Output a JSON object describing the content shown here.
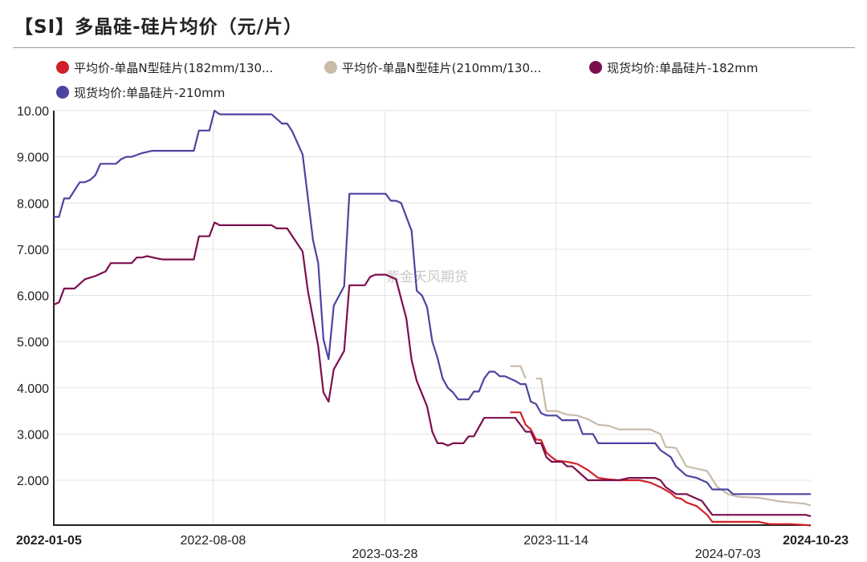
{
  "page": {
    "title": "【SI】多晶硅-硅片均价（元/片）",
    "watermark": "紫金天风期货"
  },
  "chart_data": {
    "type": "line",
    "title": "【SI】多晶硅-硅片均价（元/片）",
    "ylim": [
      1.0,
      10.0
    ],
    "y_ticks": [
      "10.00",
      "9.000",
      "8.000",
      "7.000",
      "6.000",
      "5.000",
      "4.000",
      "3.000",
      "2.000"
    ],
    "y_tick_values": [
      10,
      9,
      8,
      7,
      6,
      5,
      4,
      3,
      2
    ],
    "x_range": [
      "2022-01-05",
      "2024-10-23"
    ],
    "x_ticks": [
      {
        "label": "2022-01-05",
        "date": "2022-01-05",
        "row": 0,
        "bold": true
      },
      {
        "label": "2022-08-08",
        "date": "2022-08-08",
        "row": 0,
        "bold": false
      },
      {
        "label": "2023-03-28",
        "date": "2023-03-28",
        "row": 1,
        "bold": false
      },
      {
        "label": "2023-11-14",
        "date": "2023-11-14",
        "row": 0,
        "bold": false
      },
      {
        "label": "2024-07-03",
        "date": "2024-07-03",
        "row": 1,
        "bold": false
      },
      {
        "label": "2024-10-23",
        "date": "2024-10-23",
        "row": 0,
        "bold": true
      }
    ],
    "grid": true,
    "legend": "top",
    "series": [
      {
        "name": "平均价-单晶N型硅片(182mm/130...",
        "color": "#d0212a",
        "segments": [
          [
            [
              "2023-09-13",
              3.47
            ],
            [
              "2023-09-27",
              3.47
            ],
            [
              "2023-10-04",
              3.2
            ],
            [
              "2023-10-11",
              3.1
            ],
            [
              "2023-10-18",
              2.88
            ],
            [
              "2023-10-25",
              2.87
            ],
            [
              "2023-11-01",
              2.6
            ],
            [
              "2023-11-08",
              2.5
            ],
            [
              "2023-11-15",
              2.42
            ],
            [
              "2023-11-29",
              2.4
            ],
            [
              "2023-12-13",
              2.35
            ],
            [
              "2023-12-27",
              2.22
            ],
            [
              "2024-01-10",
              2.05
            ],
            [
              "2024-01-24",
              2.02
            ],
            [
              "2024-02-07",
              2.0
            ],
            [
              "2024-03-06",
              2.0
            ],
            [
              "2024-03-20",
              1.95
            ],
            [
              "2024-04-03",
              1.85
            ],
            [
              "2024-04-17",
              1.72
            ],
            [
              "2024-04-24",
              1.62
            ],
            [
              "2024-05-01",
              1.6
            ],
            [
              "2024-05-08",
              1.52
            ],
            [
              "2024-05-22",
              1.44
            ],
            [
              "2024-06-05",
              1.25
            ],
            [
              "2024-06-12",
              1.1
            ],
            [
              "2024-07-03",
              1.1
            ],
            [
              "2024-08-14",
              1.1
            ],
            [
              "2024-08-28",
              1.05
            ],
            [
              "2024-09-25",
              1.05
            ],
            [
              "2024-10-16",
              1.03
            ],
            [
              "2024-10-23",
              1.02
            ]
          ]
        ]
      },
      {
        "name": "平均价-单晶N型硅片(210mm/130...",
        "color": "#c8bba8",
        "segments": [
          [
            [
              "2023-09-13",
              4.47
            ],
            [
              "2023-09-27",
              4.47
            ],
            [
              "2023-10-04",
              4.2
            ]
          ],
          [
            [
              "2023-10-18",
              4.2
            ],
            [
              "2023-10-25",
              4.2
            ],
            [
              "2023-11-01",
              3.5
            ],
            [
              "2023-11-15",
              3.5
            ],
            [
              "2023-11-29",
              3.42
            ],
            [
              "2023-12-13",
              3.4
            ],
            [
              "2023-12-27",
              3.32
            ],
            [
              "2024-01-10",
              3.2
            ],
            [
              "2024-01-24",
              3.18
            ],
            [
              "2024-02-07",
              3.1
            ],
            [
              "2024-03-20",
              3.1
            ],
            [
              "2024-04-03",
              3.0
            ],
            [
              "2024-04-10",
              2.72
            ],
            [
              "2024-04-24",
              2.7
            ],
            [
              "2024-05-08",
              2.3
            ],
            [
              "2024-05-22",
              2.25
            ],
            [
              "2024-06-05",
              2.2
            ],
            [
              "2024-06-19",
              1.85
            ],
            [
              "2024-07-03",
              1.7
            ],
            [
              "2024-07-17",
              1.64
            ],
            [
              "2024-07-31",
              1.63
            ],
            [
              "2024-08-14",
              1.62
            ],
            [
              "2024-08-28",
              1.58
            ],
            [
              "2024-09-11",
              1.54
            ],
            [
              "2024-09-25",
              1.52
            ],
            [
              "2024-10-09",
              1.5
            ],
            [
              "2024-10-16",
              1.49
            ],
            [
              "2024-10-23",
              1.45
            ]
          ]
        ]
      },
      {
        "name": "现货均价:单晶硅片-182mm",
        "color": "#7d0e4e",
        "segments": [
          [
            [
              "2022-01-05",
              5.8
            ],
            [
              "2022-01-12",
              5.85
            ],
            [
              "2022-01-19",
              6.15
            ],
            [
              "2022-02-02",
              6.15
            ],
            [
              "2022-02-16",
              6.35
            ],
            [
              "2022-03-02",
              6.42
            ],
            [
              "2022-03-16",
              6.52
            ],
            [
              "2022-03-23",
              6.7
            ],
            [
              "2022-04-20",
              6.7
            ],
            [
              "2022-04-27",
              6.82
            ],
            [
              "2022-05-04",
              6.82
            ],
            [
              "2022-05-11",
              6.85
            ],
            [
              "2022-05-25",
              6.8
            ],
            [
              "2022-06-01",
              6.78
            ],
            [
              "2022-07-13",
              6.78
            ],
            [
              "2022-07-20",
              7.28
            ],
            [
              "2022-08-03",
              7.28
            ],
            [
              "2022-08-10",
              7.58
            ],
            [
              "2022-08-17",
              7.52
            ],
            [
              "2022-10-26",
              7.52
            ],
            [
              "2022-11-02",
              7.45
            ],
            [
              "2022-11-16",
              7.45
            ],
            [
              "2022-12-07",
              6.95
            ],
            [
              "2022-12-14",
              6.1
            ],
            [
              "2022-12-28",
              4.9
            ],
            [
              "2023-01-04",
              3.9
            ],
            [
              "2023-01-11",
              3.7
            ],
            [
              "2023-01-18",
              4.4
            ],
            [
              "2023-02-01",
              4.8
            ],
            [
              "2023-02-08",
              6.22
            ],
            [
              "2023-03-01",
              6.22
            ],
            [
              "2023-03-08",
              6.4
            ],
            [
              "2023-03-15",
              6.45
            ],
            [
              "2023-03-29",
              6.45
            ],
            [
              "2023-04-05",
              6.4
            ],
            [
              "2023-04-12",
              6.35
            ],
            [
              "2023-04-26",
              5.5
            ],
            [
              "2023-05-03",
              4.6
            ],
            [
              "2023-05-10",
              4.15
            ],
            [
              "2023-05-24",
              3.6
            ],
            [
              "2023-05-31",
              3.05
            ],
            [
              "2023-06-07",
              2.8
            ],
            [
              "2023-06-14",
              2.8
            ],
            [
              "2023-06-21",
              2.75
            ],
            [
              "2023-06-28",
              2.8
            ],
            [
              "2023-07-12",
              2.8
            ],
            [
              "2023-07-19",
              2.95
            ],
            [
              "2023-07-26",
              2.95
            ],
            [
              "2023-08-09",
              3.35
            ],
            [
              "2023-09-20",
              3.35
            ],
            [
              "2023-10-04",
              3.05
            ],
            [
              "2023-10-11",
              3.05
            ],
            [
              "2023-10-18",
              2.8
            ],
            [
              "2023-10-25",
              2.8
            ],
            [
              "2023-11-01",
              2.5
            ],
            [
              "2023-11-08",
              2.4
            ],
            [
              "2023-11-22",
              2.4
            ],
            [
              "2023-11-29",
              2.3
            ],
            [
              "2023-12-06",
              2.3
            ],
            [
              "2023-12-27",
              2.0
            ],
            [
              "2024-02-07",
              2.0
            ],
            [
              "2024-02-21",
              2.05
            ],
            [
              "2024-03-27",
              2.05
            ],
            [
              "2024-04-03",
              2.0
            ],
            [
              "2024-04-10",
              1.85
            ],
            [
              "2024-04-24",
              1.7
            ],
            [
              "2024-05-08",
              1.7
            ],
            [
              "2024-05-22",
              1.6
            ],
            [
              "2024-05-29",
              1.55
            ],
            [
              "2024-06-12",
              1.25
            ],
            [
              "2024-10-16",
              1.25
            ],
            [
              "2024-10-23",
              1.22
            ]
          ]
        ]
      },
      {
        "name": "现货均价:单晶硅片-210mm",
        "color": "#4c44a0",
        "segments": [
          [
            [
              "2022-01-05",
              7.7
            ],
            [
              "2022-01-12",
              7.7
            ],
            [
              "2022-01-19",
              8.1
            ],
            [
              "2022-01-26",
              8.1
            ],
            [
              "2022-02-09",
              8.45
            ],
            [
              "2022-02-16",
              8.45
            ],
            [
              "2022-02-23",
              8.5
            ],
            [
              "2022-03-02",
              8.6
            ],
            [
              "2022-03-09",
              8.85
            ],
            [
              "2022-03-23",
              8.85
            ],
            [
              "2022-03-30",
              8.85
            ],
            [
              "2022-04-06",
              8.95
            ],
            [
              "2022-04-13",
              9.0
            ],
            [
              "2022-04-20",
              9.0
            ],
            [
              "2022-05-04",
              9.08
            ],
            [
              "2022-05-18",
              9.13
            ],
            [
              "2022-07-13",
              9.13
            ],
            [
              "2022-07-20",
              9.57
            ],
            [
              "2022-08-03",
              9.57
            ],
            [
              "2022-08-10",
              10.0
            ],
            [
              "2022-08-17",
              9.92
            ],
            [
              "2022-10-26",
              9.92
            ],
            [
              "2022-11-09",
              9.72
            ],
            [
              "2022-11-16",
              9.72
            ],
            [
              "2022-11-23",
              9.55
            ],
            [
              "2022-12-07",
              9.05
            ],
            [
              "2022-12-21",
              7.2
            ],
            [
              "2022-12-28",
              6.7
            ],
            [
              "2023-01-04",
              5.05
            ],
            [
              "2023-01-11",
              4.62
            ],
            [
              "2023-01-18",
              5.78
            ],
            [
              "2023-02-01",
              6.2
            ],
            [
              "2023-02-08",
              8.2
            ],
            [
              "2023-03-29",
              8.2
            ],
            [
              "2023-04-05",
              8.05
            ],
            [
              "2023-04-12",
              8.05
            ],
            [
              "2023-04-19",
              8.0
            ],
            [
              "2023-05-03",
              7.4
            ],
            [
              "2023-05-10",
              6.1
            ],
            [
              "2023-05-17",
              6.0
            ],
            [
              "2023-05-24",
              5.75
            ],
            [
              "2023-05-31",
              5.0
            ],
            [
              "2023-06-07",
              4.65
            ],
            [
              "2023-06-14",
              4.2
            ],
            [
              "2023-06-21",
              4.0
            ],
            [
              "2023-06-28",
              3.9
            ],
            [
              "2023-07-05",
              3.75
            ],
            [
              "2023-07-19",
              3.75
            ],
            [
              "2023-07-26",
              3.92
            ],
            [
              "2023-08-02",
              3.92
            ],
            [
              "2023-08-09",
              4.2
            ],
            [
              "2023-08-16",
              4.35
            ],
            [
              "2023-08-23",
              4.35
            ],
            [
              "2023-08-30",
              4.25
            ],
            [
              "2023-09-06",
              4.25
            ],
            [
              "2023-09-20",
              4.15
            ],
            [
              "2023-09-27",
              4.08
            ],
            [
              "2023-10-04",
              4.08
            ],
            [
              "2023-10-11",
              3.7
            ],
            [
              "2023-10-18",
              3.65
            ],
            [
              "2023-10-25",
              3.45
            ],
            [
              "2023-11-01",
              3.4
            ],
            [
              "2023-11-15",
              3.4
            ],
            [
              "2023-11-22",
              3.3
            ],
            [
              "2023-12-13",
              3.3
            ],
            [
              "2023-12-20",
              3.0
            ],
            [
              "2024-01-03",
              3.0
            ],
            [
              "2024-01-10",
              2.8
            ],
            [
              "2024-03-27",
              2.8
            ],
            [
              "2024-04-03",
              2.65
            ],
            [
              "2024-04-17",
              2.5
            ],
            [
              "2024-04-24",
              2.3
            ],
            [
              "2024-05-08",
              2.1
            ],
            [
              "2024-05-22",
              2.05
            ],
            [
              "2024-06-05",
              1.95
            ],
            [
              "2024-06-12",
              1.8
            ],
            [
              "2024-07-03",
              1.8
            ],
            [
              "2024-07-10",
              1.7
            ],
            [
              "2024-10-23",
              1.7
            ]
          ]
        ]
      }
    ]
  }
}
